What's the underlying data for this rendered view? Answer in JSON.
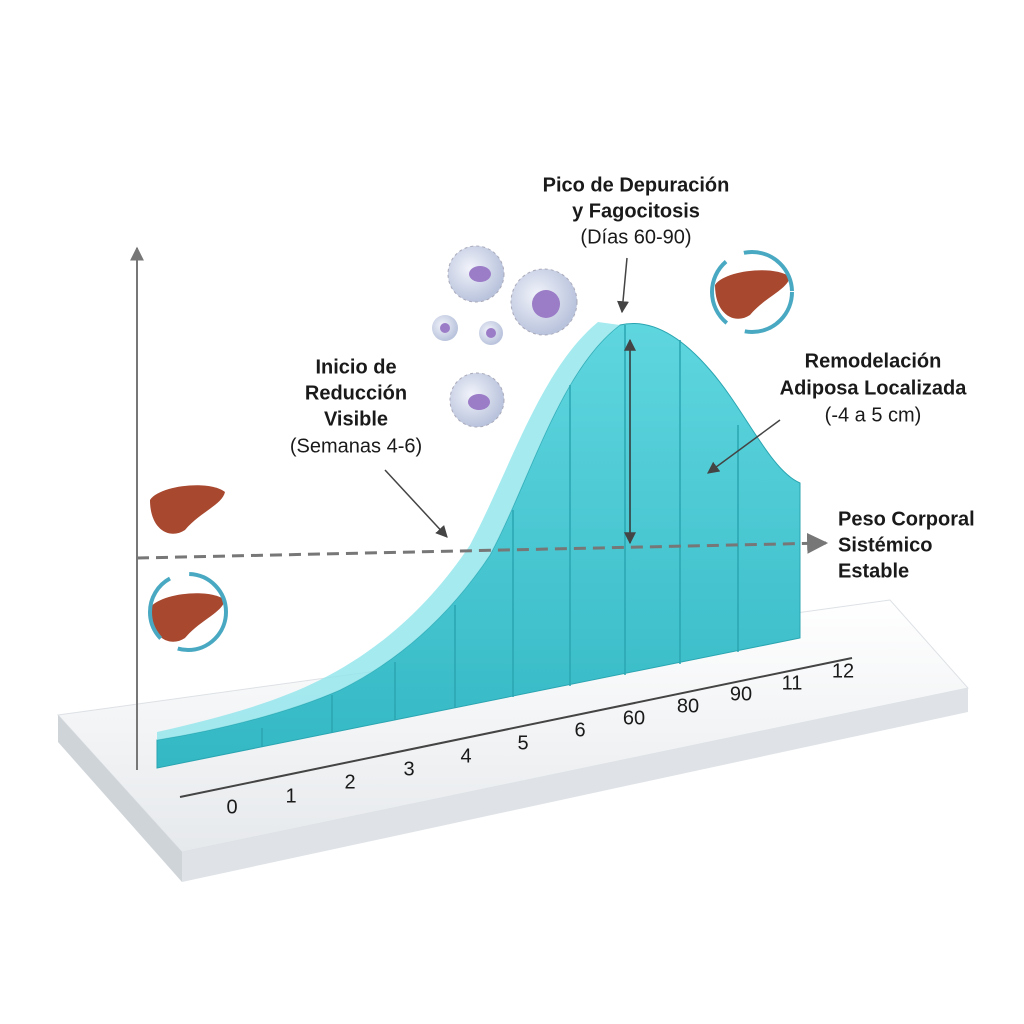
{
  "annotations": {
    "peak": {
      "lines": [
        "Pico de Depuración",
        "y Fagocitosis",
        "(Días 60-90)"
      ]
    },
    "onset": {
      "lines": [
        "Inicio de",
        "Reducción",
        "Visible",
        "(Semanas 4-6)"
      ]
    },
    "remodel": {
      "lines": [
        "Remodelación",
        "Adiposa Localizada",
        "(-4 a 5 cm)"
      ]
    },
    "baseline": {
      "lines": [
        "Peso Corporal",
        "Sistémico",
        "Estable"
      ]
    }
  },
  "x_axis": {
    "labels": [
      "0",
      "1",
      "2",
      "3",
      "4",
      "5",
      "6",
      "60",
      "80",
      "90",
      "11",
      "12"
    ]
  }
}
